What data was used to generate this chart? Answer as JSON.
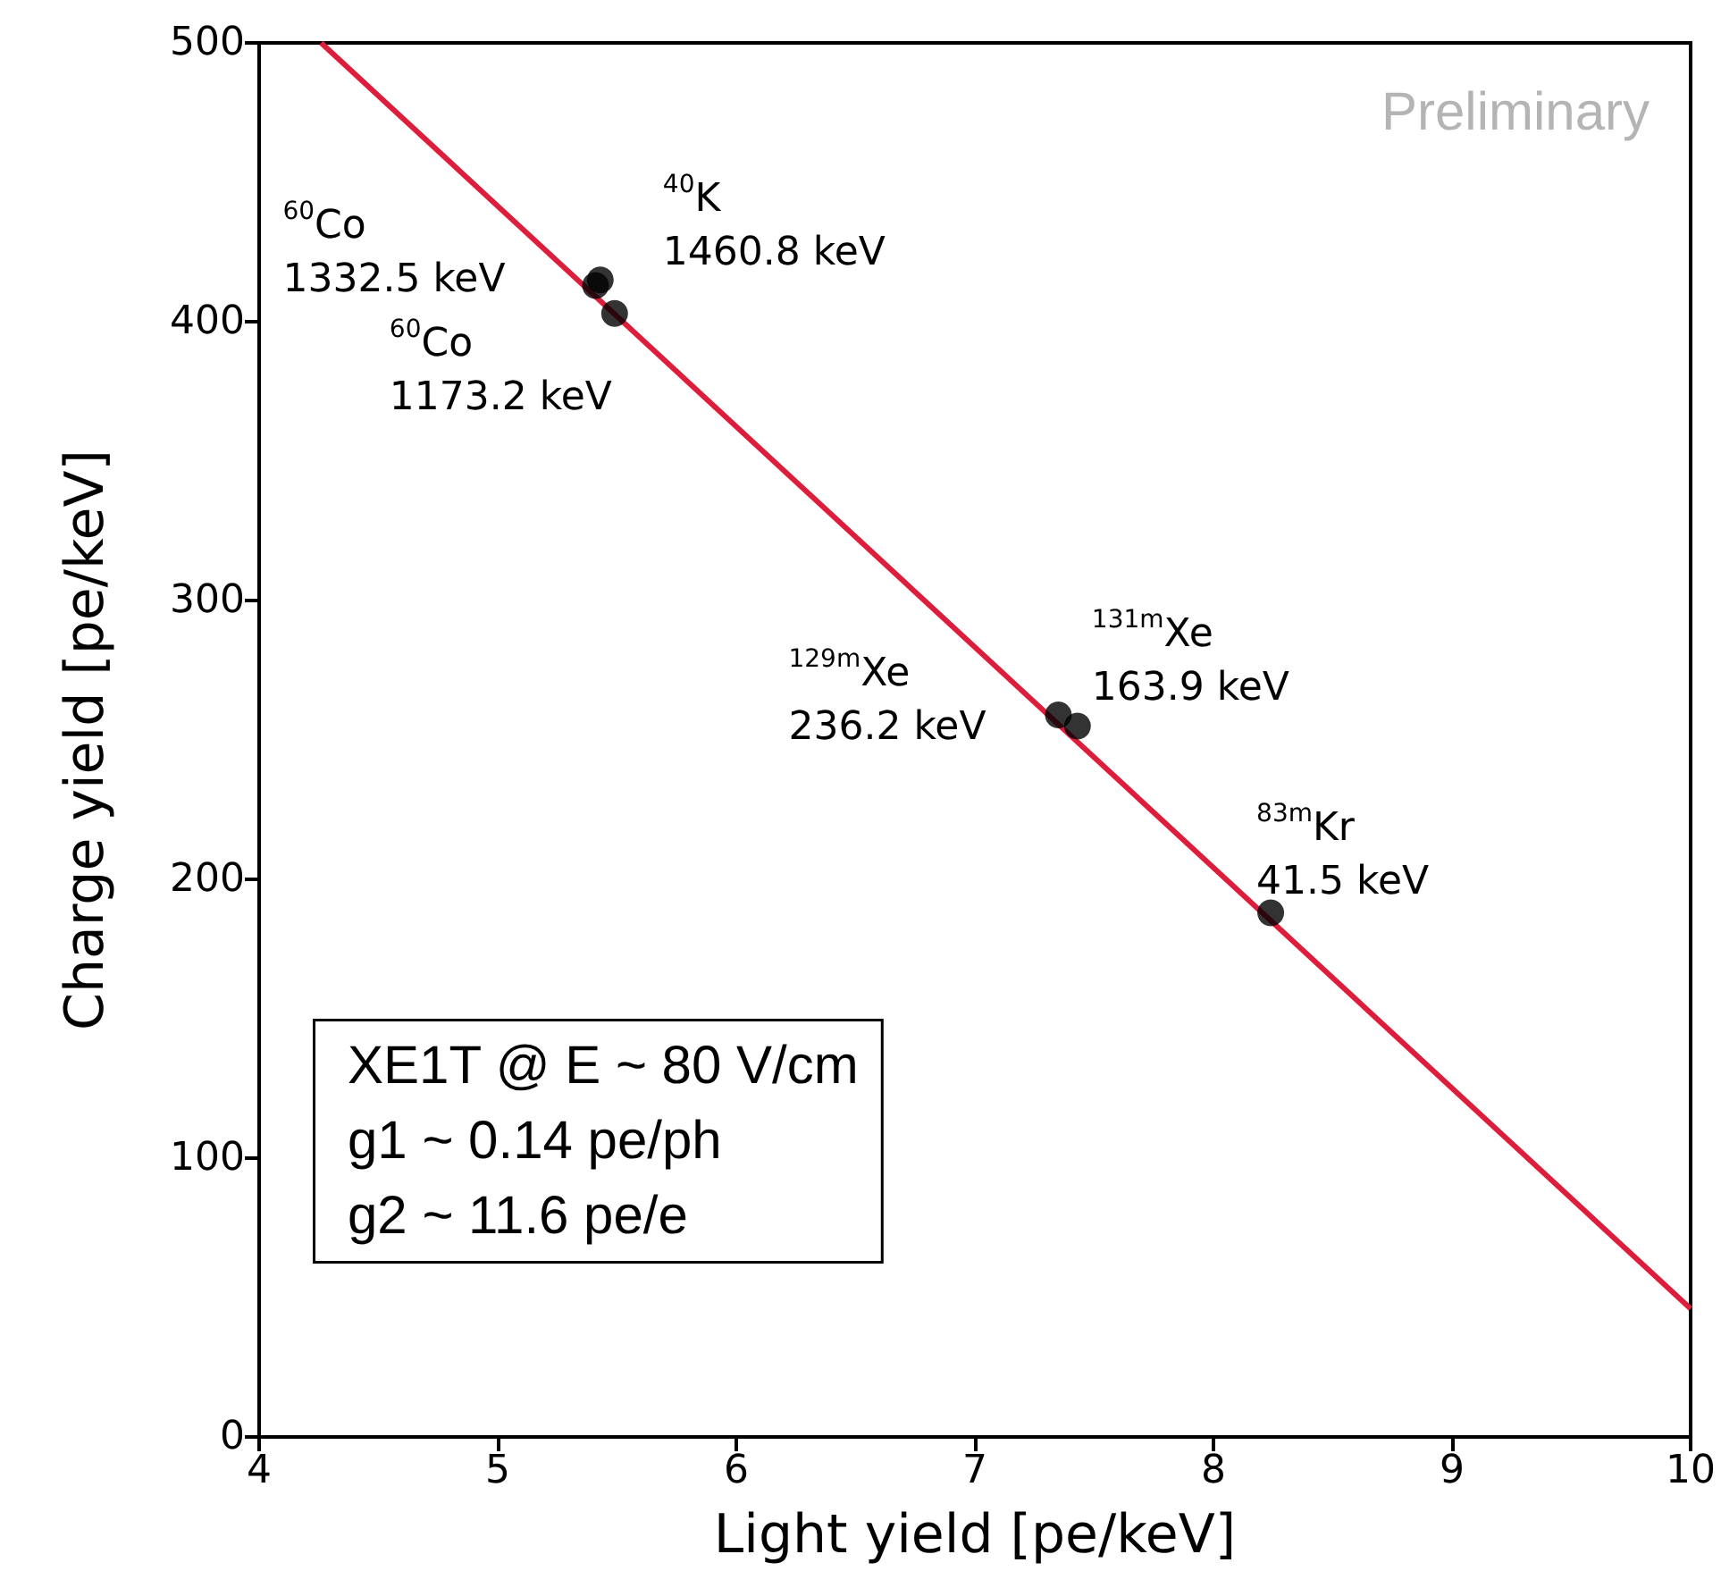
{
  "chart_data": {
    "type": "scatter",
    "xlabel": "Light yield [pe/keV]",
    "ylabel": "Charge yield [pe/keV]",
    "xlim": [
      4,
      10
    ],
    "xticks": [
      4,
      5,
      6,
      7,
      8,
      9,
      10
    ],
    "ylim": [
      0,
      500
    ],
    "yticks": [
      0,
      100,
      200,
      300,
      400,
      500
    ],
    "grid": false,
    "marker": "circle",
    "series": [
      {
        "type": "line",
        "color": "#dc1e3c",
        "x": [
          4.26,
          10
        ],
        "values": [
          500,
          46
        ],
        "marker": "none"
      },
      {
        "type": "scatter",
        "color": "#000000",
        "x": [
          5.41,
          5.43,
          5.49,
          7.35,
          7.43,
          8.24
        ],
        "values": [
          413,
          415,
          403,
          259,
          255,
          188
        ]
      }
    ],
    "annotations": [
      {
        "text": "$^{60}$Co\n1332.5 keV",
        "x": 5.41,
        "y": 413
      },
      {
        "text": "$^{40}$K\n1460.8 keV",
        "x": 5.43,
        "y": 415
      },
      {
        "text": "$^{60}$Co\n1173.2 keV",
        "x": 5.49,
        "y": 403
      },
      {
        "text": "$^{129m}$Xe\n236.2 keV",
        "x": 7.35,
        "y": 259
      },
      {
        "text": "$^{131m}$Xe\n163.9 keV",
        "x": 7.43,
        "y": 255
      },
      {
        "text": "$^{83m}$Kr\n41.5 keV",
        "x": 8.24,
        "y": 188
      },
      "Preliminary",
      "XE1T @ E ~ 80 V/cm\ng1 ~ 0.14 pe/ph\ng2 ~ 11.6 pe/e"
    ]
  }
}
